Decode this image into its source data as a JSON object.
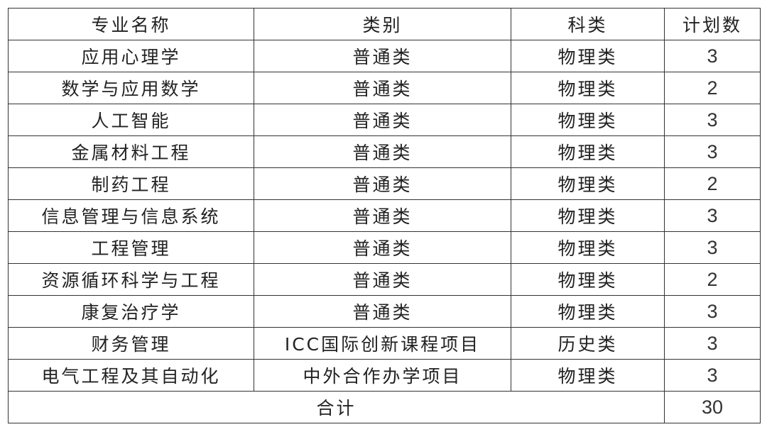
{
  "headers": [
    "专业名称",
    "类别",
    "科类",
    "计划数"
  ],
  "rows": [
    [
      "应用心理学",
      "普通类",
      "物理类",
      "3"
    ],
    [
      "数学与应用数学",
      "普通类",
      "物理类",
      "2"
    ],
    [
      "人工智能",
      "普通类",
      "物理类",
      "3"
    ],
    [
      "金属材料工程",
      "普通类",
      "物理类",
      "3"
    ],
    [
      "制药工程",
      "普通类",
      "物理类",
      "2"
    ],
    [
      "信息管理与信息系统",
      "普通类",
      "物理类",
      "3"
    ],
    [
      "工程管理",
      "普通类",
      "物理类",
      "3"
    ],
    [
      "资源循环科学与工程",
      "普通类",
      "物理类",
      "2"
    ],
    [
      "康复治疗学",
      "普通类",
      "物理类",
      "3"
    ],
    [
      "财务管理",
      "ICC国际创新课程项目",
      "历史类",
      "3"
    ],
    [
      "电气工程及其自动化",
      "中外合作办学项目",
      "物理类",
      "3"
    ]
  ],
  "total": {
    "label": "合计",
    "value": "30"
  }
}
